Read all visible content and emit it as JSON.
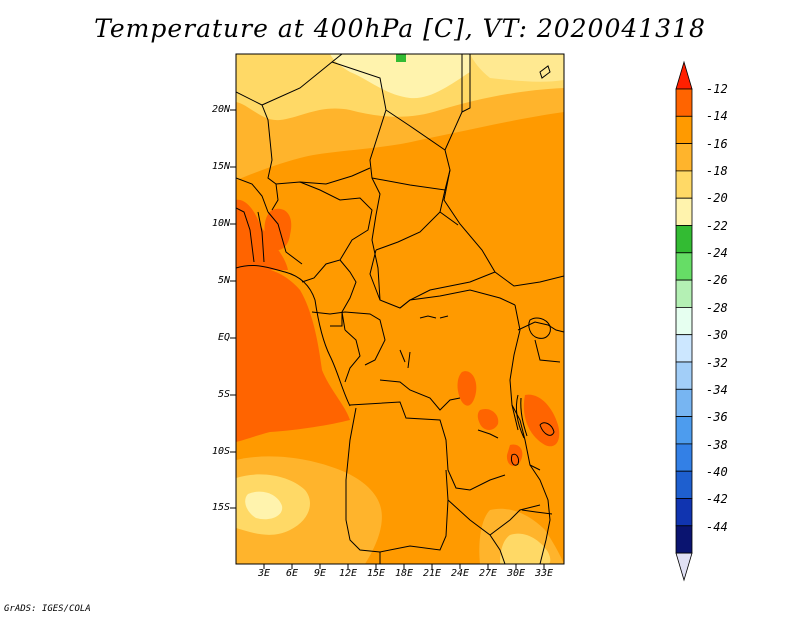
{
  "title": "Temperature at 400hPa [C], VT: 2020041318",
  "credit": "GrADS: IGES/COLA",
  "map": {
    "lat_labels": [
      {
        "value": 20,
        "label": "20N"
      },
      {
        "value": 15,
        "label": "15N"
      },
      {
        "value": 10,
        "label": "10N"
      },
      {
        "value": 5,
        "label": "5N"
      },
      {
        "value": 0,
        "label": "EQ"
      },
      {
        "value": -5,
        "label": "5S"
      },
      {
        "value": -10,
        "label": "10S"
      },
      {
        "value": -15,
        "label": "15S"
      }
    ],
    "lon_labels": [
      {
        "value": 3,
        "label": "3E"
      },
      {
        "value": 6,
        "label": "6E"
      },
      {
        "value": 9,
        "label": "9E"
      },
      {
        "value": 12,
        "label": "12E"
      },
      {
        "value": 15,
        "label": "15E"
      },
      {
        "value": 18,
        "label": "18E"
      },
      {
        "value": 21,
        "label": "21E"
      },
      {
        "value": 24,
        "label": "24E"
      },
      {
        "value": 27,
        "label": "27E"
      },
      {
        "value": 30,
        "label": "30E"
      },
      {
        "value": 33,
        "label": "33E"
      }
    ]
  },
  "colorbar": {
    "labels": [
      "-12",
      "-14",
      "-16",
      "-18",
      "-20",
      "-22",
      "-24",
      "-26",
      "-28",
      "-30",
      "-32",
      "-34",
      "-36",
      "-38",
      "-40",
      "-42",
      "-44"
    ],
    "colors": [
      "#ff2000",
      "#ff6400",
      "#ff9a00",
      "#ffb42c",
      "#ffd966",
      "#fff3ad",
      "#33bb33",
      "#66dd66",
      "#b4f0b4",
      "#e6fff0",
      "#cce7ff",
      "#a2cef8",
      "#77b5f2",
      "#4d9cee",
      "#3380e6",
      "#1e5fcf",
      "#1034b0",
      "#0a1470",
      "#e0e0f4"
    ]
  }
}
